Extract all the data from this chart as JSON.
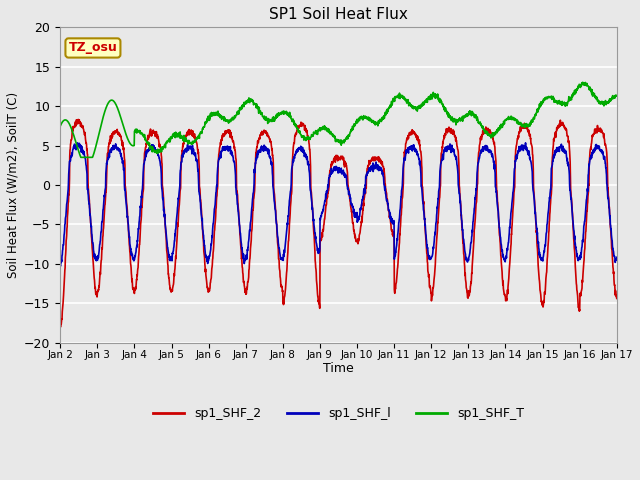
{
  "title": "SP1 Soil Heat Flux",
  "xlabel": "Time",
  "ylabel": "Soil Heat Flux (W/m2), SoilT (C)",
  "ylim": [
    -20,
    20
  ],
  "yticks": [
    -20,
    -15,
    -10,
    -5,
    0,
    5,
    10,
    15,
    20
  ],
  "xtick_labels": [
    "Jan 2",
    "Jan 3",
    "Jan 4",
    "Jan 5",
    "Jan 6",
    "Jan 7",
    "Jan 8",
    "Jan 9",
    "Jan 10",
    "Jan 11",
    "Jan 12",
    "Jan 13",
    "Jan 14",
    "Jan 15",
    "Jan 16",
    "Jan 17"
  ],
  "color_shf2": "#cc0000",
  "color_shf1": "#0000bb",
  "color_shft": "#00aa00",
  "legend_labels": [
    "sp1_SHF_2",
    "sp1_SHF_l",
    "sp1_SHF_T"
  ],
  "tz_label": "TZ_osu",
  "plot_bg_color": "#e8e8e8",
  "fig_bg_color": "#e8e8e8",
  "line_width": 1.2,
  "grid_color": "#ffffff",
  "days": 15,
  "points_per_day": 144
}
